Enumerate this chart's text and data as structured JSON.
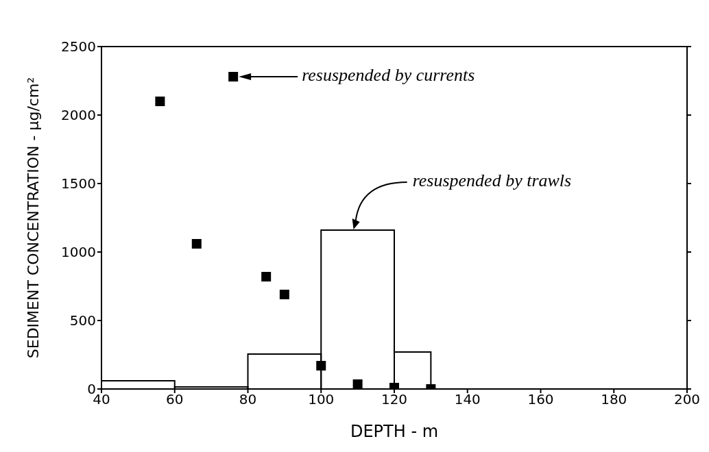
{
  "chart_data": {
    "type": "histogram",
    "xlabel": "DEPTH - m",
    "ylabel": "SEDIMENT CONCENTRATION - μg/cm²",
    "bins": [
      40,
      60,
      80,
      100,
      120,
      130
    ],
    "values": [
      60,
      15,
      255,
      1160,
      270
    ],
    "color": "#000000",
    "series": [
      {
        "type": "scatter",
        "color": "#000000",
        "x": [
          56,
          66,
          76,
          85,
          90,
          100,
          110,
          120,
          130
        ],
        "values": [
          2100,
          1060,
          2280,
          820,
          690,
          170,
          35,
          10,
          0
        ]
      }
    ],
    "marker": "square",
    "xlim": [
      40,
      200
    ],
    "xticks": [
      40,
      60,
      80,
      100,
      120,
      140,
      160,
      180,
      200
    ],
    "ylim": [
      0,
      2500
    ],
    "yticks": [
      0,
      500,
      1000,
      1500,
      2000,
      2500
    ],
    "annotations": [
      "resuspended by currents",
      "resuspended by trawls"
    ]
  }
}
